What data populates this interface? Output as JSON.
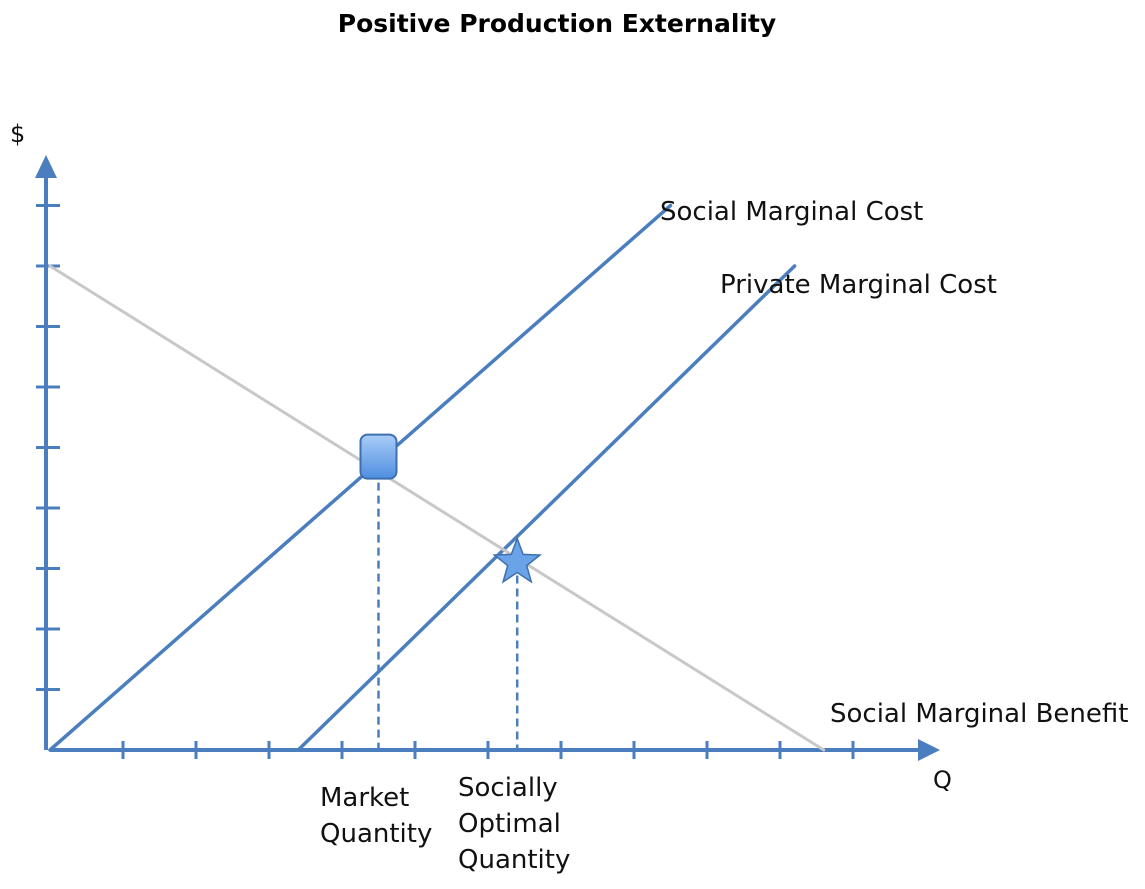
{
  "chart_data": {
    "type": "line",
    "title": "Positive Production Externality",
    "xlabel": "Q",
    "ylabel": "$",
    "xlim": [
      0,
      12
    ],
    "ylim": [
      0,
      9
    ],
    "grid": false,
    "x_ticks": 11,
    "y_ticks": 9,
    "series": [
      {
        "name": "Social Marginal Cost",
        "color": "#4a7ebf",
        "x": [
          0,
          8.5
        ],
        "y": [
          0,
          9.0
        ]
      },
      {
        "name": "Private Marginal Cost",
        "color": "#4a7ebf",
        "x": [
          3.4,
          10.2
        ],
        "y": [
          0,
          8.0
        ]
      },
      {
        "name": "Social Marginal Benefit",
        "color": "#c8c8c8",
        "x": [
          0,
          10.6
        ],
        "y": [
          8.0,
          0
        ]
      }
    ],
    "markers": [
      {
        "shape": "rounded-square",
        "x": 4.5,
        "y": 4.85,
        "color": "#6aa3e8"
      },
      {
        "shape": "star",
        "x": 6.4,
        "y": 3.1,
        "color": "#6aa3e8"
      }
    ],
    "reference_lines": [
      {
        "x": 4.5,
        "y_top": 4.85,
        "label": [
          "Market",
          "Quantity"
        ]
      },
      {
        "x": 6.4,
        "y_top": 3.1,
        "label": [
          "Socially",
          "Optimal",
          "Quantity"
        ]
      }
    ],
    "axis_color": "#4a7ebf"
  }
}
